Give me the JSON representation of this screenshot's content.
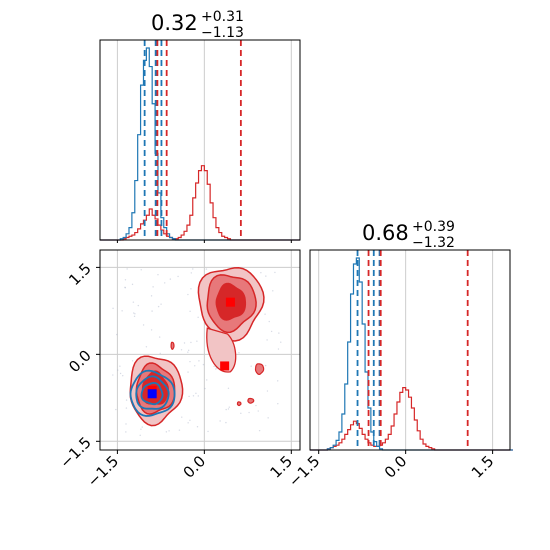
{
  "colors": {
    "red": "#d62728",
    "blue": "#1f77b4",
    "red_fill_light": "#f2c4c5",
    "red_fill_mid": "#e7787a",
    "red_fill_dark": "#d62728",
    "grid": "#cccccc",
    "marker_red": "#ff0000",
    "marker_blue": "#0000ff"
  },
  "chart_data": [
    {
      "type": "histogram",
      "panel": "top-left",
      "title": {
        "median": "0.32",
        "upper": "+0.31",
        "lower": "−1.13"
      },
      "xlim": [
        -1.8,
        1.65
      ],
      "grid": true,
      "xticks": [
        -1.5,
        0.0,
        1.5
      ],
      "red_quantiles": [
        -0.81,
        -0.65,
        0.63
      ],
      "blue_quantiles": [
        -1.03,
        -0.84,
        -0.74
      ],
      "red_hist": {
        "bin_edges_start": -1.8,
        "bin_width": 0.05,
        "counts": [
          0,
          0,
          0,
          0,
          0,
          0,
          0,
          0,
          1,
          2,
          3,
          4,
          6,
          9,
          13,
          16,
          20,
          25,
          20,
          17,
          12,
          8,
          5,
          3,
          2,
          1,
          1,
          2,
          4,
          7,
          12,
          20,
          34,
          46,
          56,
          60,
          56,
          45,
          30,
          18,
          10,
          6,
          3,
          2,
          1,
          0,
          0,
          0,
          0,
          0,
          0,
          0,
          0,
          0,
          0,
          0,
          0,
          0,
          0,
          0,
          0,
          0,
          0,
          0,
          0,
          0,
          0,
          0,
          0
        ]
      },
      "blue_hist": {
        "bin_edges_start": -1.8,
        "bin_width": 0.05,
        "counts": [
          0,
          0,
          0,
          0,
          0,
          0,
          0,
          1,
          2,
          5,
          10,
          22,
          48,
          85,
          125,
          145,
          155,
          140,
          110,
          70,
          38,
          18,
          10,
          5,
          2,
          1,
          0,
          0,
          0,
          0,
          0,
          0,
          0,
          0,
          0,
          0,
          0,
          0,
          0,
          0,
          0,
          0,
          0,
          0,
          0,
          0,
          0,
          0,
          0,
          0,
          0,
          0,
          0,
          0,
          0,
          0,
          0,
          0,
          0,
          0,
          0,
          0,
          0,
          0,
          0,
          0,
          0,
          0,
          0
        ]
      }
    },
    {
      "type": "contour",
      "panel": "bottom-left",
      "xlim": [
        -1.8,
        1.65
      ],
      "ylim": [
        -1.65,
        1.8
      ],
      "grid": true,
      "xticks": [
        -1.5,
        0.0,
        1.5
      ],
      "yticks": [
        -1.5,
        0.0,
        1.5
      ],
      "red_clusters": [
        {
          "cx": 0.45,
          "cy": 0.9,
          "levels_rx": [
            0.55,
            0.42,
            0.25
          ],
          "levels_ry": [
            0.62,
            0.48,
            0.3
          ]
        },
        {
          "cx": -0.85,
          "cy": -0.6,
          "levels_rx": [
            0.45,
            0.33,
            0.22
          ],
          "levels_ry": [
            0.58,
            0.42,
            0.28
          ]
        }
      ],
      "blue_cluster": {
        "cx": -0.9,
        "cy": -0.68,
        "levels_rx": [
          0.38,
          0.28,
          0.18
        ],
        "levels_ry": [
          0.38,
          0.28,
          0.18
        ]
      },
      "markers": [
        {
          "x": 0.45,
          "y": 0.9,
          "color": "red"
        },
        {
          "x": -0.9,
          "y": -0.62,
          "color": "red"
        },
        {
          "x": 0.35,
          "y": -0.2,
          "color": "red"
        },
        {
          "x": -0.9,
          "y": -0.68,
          "color": "blue"
        }
      ]
    },
    {
      "type": "histogram",
      "panel": "bottom-right",
      "title": {
        "median": "0.68",
        "upper": "+0.39",
        "lower": "−1.32"
      },
      "xlim": [
        -1.65,
        1.8
      ],
      "grid": true,
      "xticks": [
        -1.5,
        0.0,
        1.5
      ],
      "red_quantiles": [
        -0.64,
        -0.43,
        1.07
      ],
      "blue_quantiles": [
        -0.83,
        -0.55,
        -0.45
      ],
      "red_hist": {
        "bin_edges_start": -1.65,
        "bin_width": 0.05,
        "counts": [
          0,
          0,
          0,
          0,
          0,
          0,
          1,
          2,
          3,
          4,
          6,
          9,
          13,
          17,
          21,
          24,
          22,
          18,
          13,
          9,
          6,
          4,
          3,
          3,
          4,
          6,
          9,
          13,
          20,
          30,
          40,
          48,
          52,
          50,
          44,
          35,
          25,
          16,
          9,
          5,
          3,
          2,
          1,
          0,
          0,
          0,
          0,
          0,
          0,
          0,
          0,
          0,
          0,
          0,
          0,
          0,
          0,
          0,
          0,
          0,
          0,
          0,
          0,
          0,
          0,
          0,
          0,
          0,
          0,
          0
        ]
      },
      "blue_hist": {
        "bin_edges_start": -1.65,
        "bin_width": 0.05,
        "counts": [
          0,
          0,
          0,
          0,
          0,
          0,
          1,
          2,
          4,
          8,
          15,
          30,
          55,
          90,
          130,
          155,
          160,
          140,
          105,
          65,
          35,
          15,
          7,
          3,
          1,
          0,
          0,
          0,
          0,
          0,
          0,
          0,
          0,
          0,
          0,
          0,
          0,
          0,
          0,
          0,
          0,
          0,
          0,
          0,
          0,
          0,
          0,
          0,
          0,
          0,
          0,
          0,
          0,
          0,
          0,
          0,
          0,
          0,
          0,
          0,
          0,
          0,
          0,
          0,
          0,
          0,
          0,
          0,
          0,
          0
        ]
      }
    }
  ]
}
